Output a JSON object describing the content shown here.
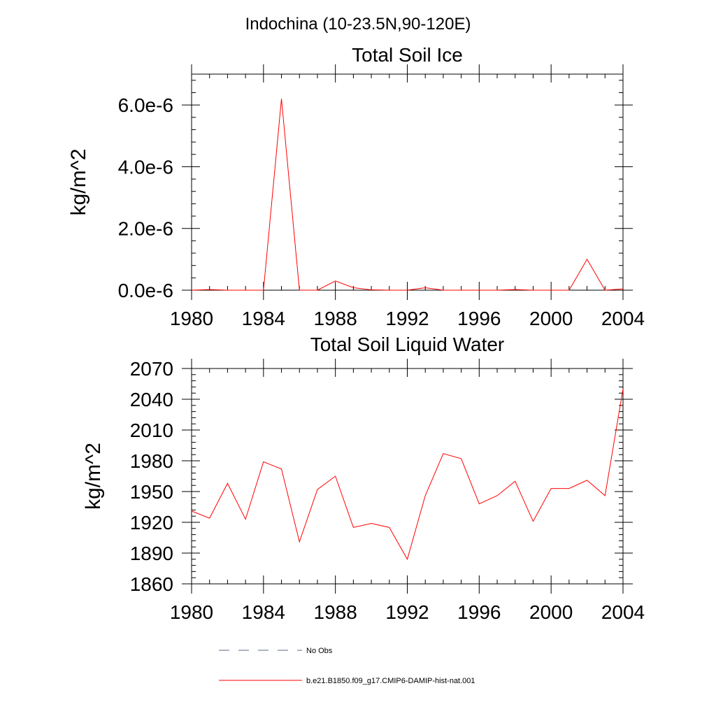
{
  "figure_title": "Indochina (10-23.5N,90-120E)",
  "chart_data": [
    {
      "type": "line",
      "title": "Total Soil Ice",
      "xlabel": "",
      "ylabel": "kg/m^2",
      "xlim": [
        1980,
        2004
      ],
      "ylim": [
        0,
        7e-06
      ],
      "x_ticks": [
        1980,
        1984,
        1988,
        1992,
        1996,
        2000,
        2004
      ],
      "x_tick_labels": [
        "1980",
        "1984",
        "1988",
        "1992",
        "1996",
        "2000",
        "2004"
      ],
      "y_ticks": [
        0,
        2e-06,
        4e-06,
        6e-06
      ],
      "y_tick_labels": [
        "0.0e-6",
        "2.0e-6",
        "4.0e-6",
        "6.0e-6"
      ],
      "x": [
        1980,
        1981,
        1982,
        1983,
        1984,
        1985,
        1986,
        1987,
        1988,
        1989,
        1990,
        1991,
        1992,
        1993,
        1994,
        1995,
        1996,
        1997,
        1998,
        1999,
        2000,
        2001,
        2002,
        2003,
        2004
      ],
      "series": [
        {
          "name": "b.e21.B1850.f09_g17.CMIP6-DAMIP-hist-nat.001",
          "color": "#ff0000",
          "values": [
            0,
            2e-08,
            0,
            0,
            0,
            6.2e-06,
            0,
            0,
            3e-07,
            8e-08,
            1e-08,
            0,
            0,
            8e-08,
            0,
            0,
            0,
            0,
            2e-08,
            0,
            0,
            0,
            1e-06,
            0,
            4e-08
          ]
        }
      ]
    },
    {
      "type": "line",
      "title": "Total Soil Liquid Water",
      "xlabel": "",
      "ylabel": "kg/m^2",
      "xlim": [
        1980,
        2004
      ],
      "ylim": [
        1860,
        2070
      ],
      "x_ticks": [
        1980,
        1984,
        1988,
        1992,
        1996,
        2000,
        2004
      ],
      "x_tick_labels": [
        "1980",
        "1984",
        "1988",
        "1992",
        "1996",
        "2000",
        "2004"
      ],
      "y_ticks": [
        1860,
        1890,
        1920,
        1950,
        1980,
        2010,
        2040,
        2070
      ],
      "y_tick_labels": [
        "1860",
        "1890",
        "1920",
        "1950",
        "1980",
        "2010",
        "2040",
        "2070"
      ],
      "x": [
        1980,
        1981,
        1982,
        1983,
        1984,
        1985,
        1986,
        1987,
        1988,
        1989,
        1990,
        1991,
        1992,
        1993,
        1994,
        1995,
        1996,
        1997,
        1998,
        1999,
        2000,
        2001,
        2002,
        2003,
        2004
      ],
      "series": [
        {
          "name": "b.e21.B1850.f09_g17.CMIP6-DAMIP-hist-nat.001",
          "color": "#ff0000",
          "values": [
            1931,
            1924,
            1958,
            1923,
            1979,
            1972,
            1901,
            1952,
            1965,
            1915,
            1919,
            1915,
            1884,
            1946,
            1987,
            1982,
            1938,
            1946,
            1960,
            1921,
            1953,
            1953,
            1961,
            1946,
            2050
          ]
        }
      ]
    }
  ],
  "legend": {
    "items": [
      {
        "label": "No Obs",
        "style": "dashed",
        "color": "#5a6a8a"
      },
      {
        "label": "b.e21.B1850.f09_g17.CMIP6-DAMIP-hist-nat.001",
        "style": "solid",
        "color": "#ff0000"
      }
    ]
  }
}
